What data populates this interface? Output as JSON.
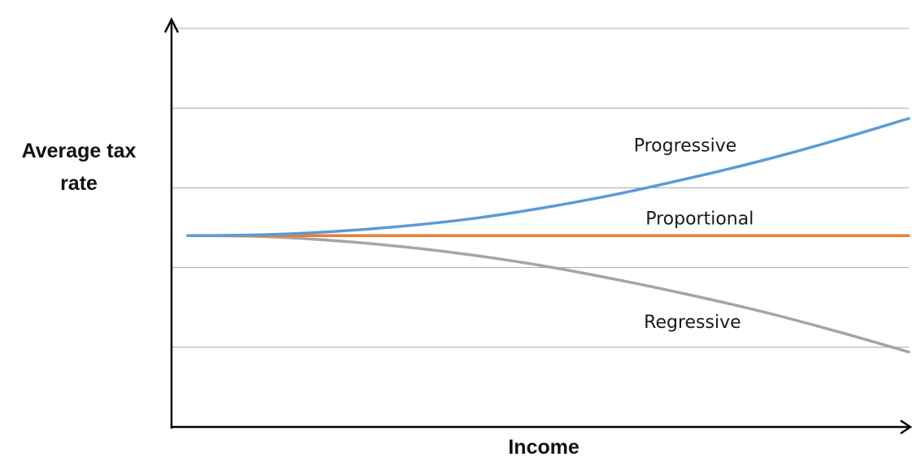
{
  "chart_data": {
    "type": "line",
    "title": "",
    "xlabel": "Income",
    "ylabel": "Average tax rate",
    "ylabel_lines": [
      "Average tax",
      "rate"
    ],
    "xlim": [
      0,
      10
    ],
    "ylim": [
      0,
      5
    ],
    "grid": true,
    "gridlines_y": [
      1,
      2,
      3,
      4,
      5
    ],
    "x": [
      0,
      1,
      2,
      3,
      4,
      5,
      6,
      7,
      8,
      9,
      10
    ],
    "series": [
      {
        "name": "Progressive",
        "color": "#5b9bd5",
        "values": [
          2.4,
          2.41,
          2.45,
          2.52,
          2.62,
          2.76,
          2.93,
          3.13,
          3.35,
          3.6,
          3.87
        ]
      },
      {
        "name": "Proportional",
        "color": "#ed7d31",
        "values": [
          2.4,
          2.4,
          2.4,
          2.4,
          2.4,
          2.4,
          2.4,
          2.4,
          2.4,
          2.4,
          2.4
        ]
      },
      {
        "name": "Regressive",
        "color": "#a5a5a5",
        "values": [
          2.4,
          2.39,
          2.34,
          2.26,
          2.15,
          2.01,
          1.84,
          1.65,
          1.44,
          1.2,
          0.94
        ]
      }
    ]
  }
}
